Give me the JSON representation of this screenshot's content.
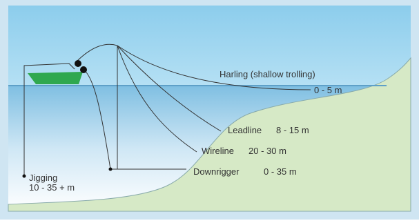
{
  "labels": [
    {
      "name": "Harling (shallow trolling)",
      "depth": "0 - 5 m"
    },
    {
      "name": "Leadline",
      "depth": "8 - 15 m"
    },
    {
      "name": "Wireline",
      "depth": "20 - 30 m"
    },
    {
      "name": "Downrigger",
      "depth": "0 - 35 m"
    },
    {
      "name": "Jigging",
      "depth": "10 - 35 + m"
    }
  ]
}
